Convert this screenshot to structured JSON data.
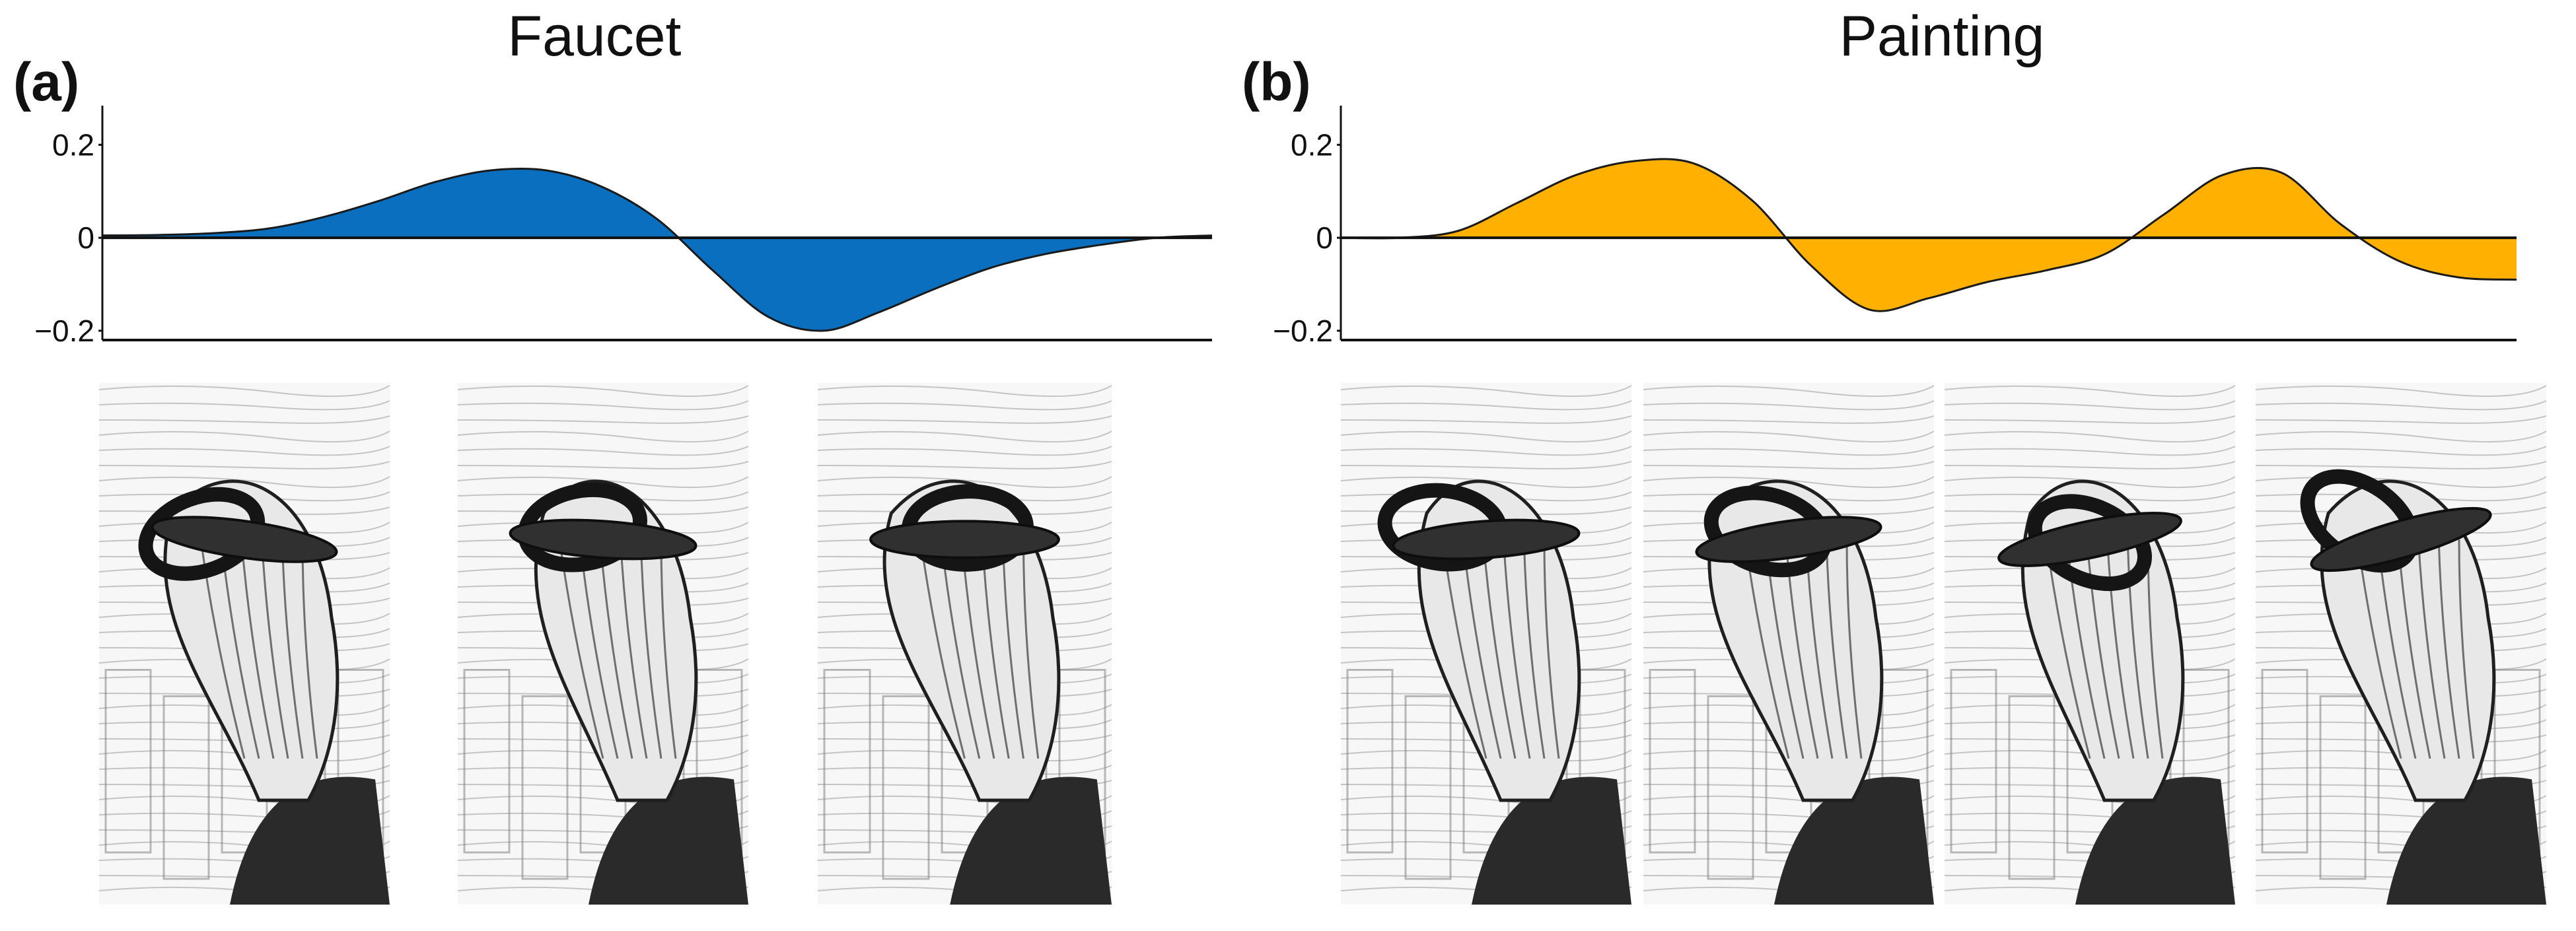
{
  "panels": [
    {
      "letter": "(a)",
      "title": "Faucet",
      "color": "#0a6fbf",
      "frame_count": 3
    },
    {
      "letter": "(b)",
      "title": "Painting",
      "color": "#ffb000",
      "frame_count": 4
    }
  ],
  "chart_data": [
    {
      "type": "area",
      "title": "Faucet",
      "xlabel": "",
      "ylabel": "",
      "ylim": [
        -0.22,
        0.27
      ],
      "yticks": [
        0.2,
        0,
        -0.2
      ],
      "ytick_labels": [
        "0.2",
        "0",
        "−0.2"
      ],
      "color": "#0a6fbf",
      "x": [
        0,
        0.05,
        0.1,
        0.15,
        0.2,
        0.25,
        0.3,
        0.35,
        0.4,
        0.45,
        0.5,
        0.55,
        0.6,
        0.65,
        0.7,
        0.75,
        0.8,
        0.85,
        0.9,
        0.95,
        1.0
      ],
      "values": [
        0.005,
        0.006,
        0.01,
        0.02,
        0.045,
        0.08,
        0.12,
        0.145,
        0.145,
        0.11,
        0.04,
        -0.07,
        -0.17,
        -0.2,
        -0.16,
        -0.11,
        -0.065,
        -0.035,
        -0.015,
        0.0,
        0.005
      ]
    },
    {
      "type": "area",
      "title": "Painting",
      "xlabel": "",
      "ylabel": "",
      "ylim": [
        -0.22,
        0.27
      ],
      "yticks": [
        0.2,
        0,
        -0.2
      ],
      "ytick_labels": [
        "0.2",
        "0",
        "−0.2"
      ],
      "color": "#ffb000",
      "x": [
        0,
        0.05,
        0.1,
        0.15,
        0.2,
        0.25,
        0.3,
        0.35,
        0.4,
        0.45,
        0.5,
        0.55,
        0.6,
        0.65,
        0.7,
        0.75,
        0.8,
        0.85,
        0.9,
        0.95,
        1.0
      ],
      "values": [
        0.0,
        0.0,
        0.015,
        0.075,
        0.135,
        0.165,
        0.16,
        0.08,
        -0.06,
        -0.155,
        -0.13,
        -0.095,
        -0.07,
        -0.035,
        0.05,
        0.135,
        0.14,
        0.03,
        -0.05,
        -0.085,
        -0.09
      ]
    }
  ]
}
